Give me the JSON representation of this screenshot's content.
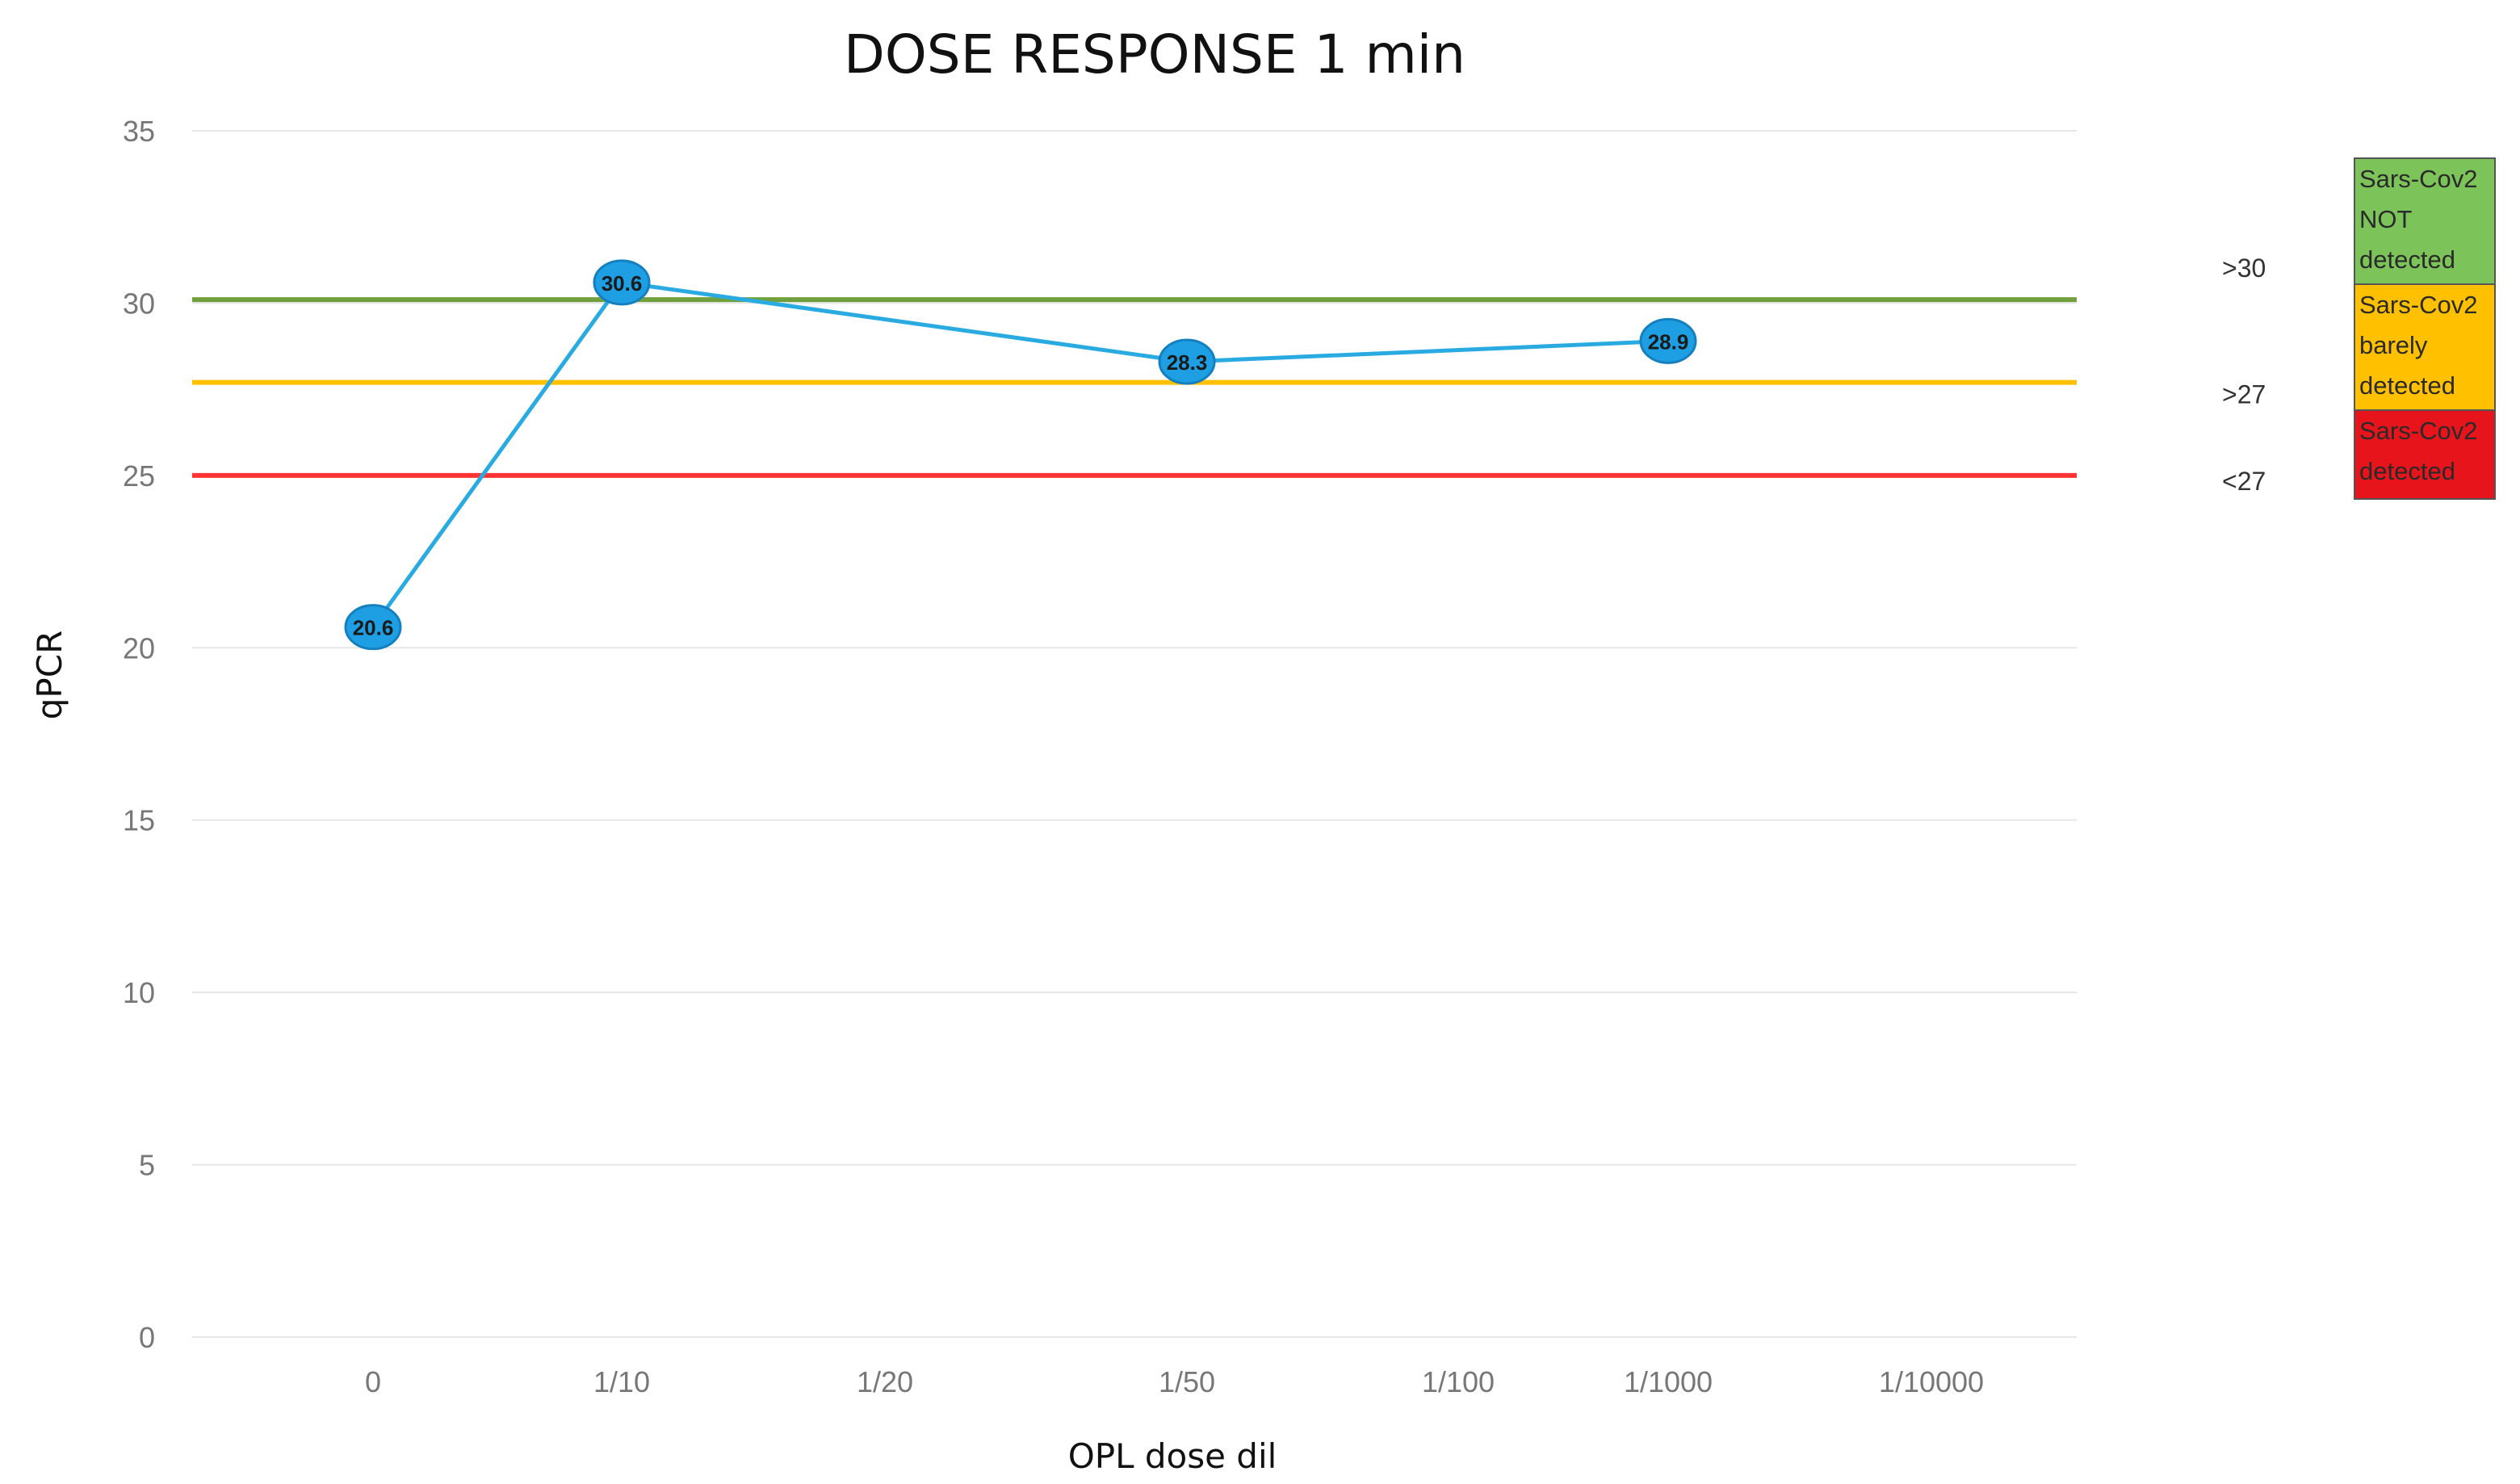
{
  "chart_data": {
    "type": "line",
    "title": "DOSE RESPONSE 1 min",
    "xlabel": "OPL dose dil",
    "ylabel": "qPCR",
    "categories": [
      "0",
      "1/10",
      "1/20",
      "1/50",
      "1/100",
      "1/1000",
      "1/10000"
    ],
    "yticks": [
      "0",
      "5",
      "10",
      "15",
      "20",
      "25",
      "30",
      "35"
    ],
    "ylim": [
      0,
      35
    ],
    "grid": true,
    "series": [
      {
        "color": "#29abe2",
        "points": [
          {
            "x": "0",
            "y": 20.6,
            "label": "20.6"
          },
          {
            "x": "1/10",
            "y": 30.6,
            "label": "30.6"
          },
          {
            "x": "1/50",
            "y": 28.3,
            "label": "28.3"
          },
          {
            "x": "1/1000",
            "y": 28.9,
            "label": "28.9"
          }
        ]
      }
    ],
    "reference_lines": [
      {
        "y": 30.1,
        "color": "#6fa03c",
        "label": ">30"
      },
      {
        "y": 27.7,
        "color": "#ffc000",
        "label": ">27"
      },
      {
        "y": 25.0,
        "color": "#ff3333",
        "label": "<27"
      }
    ],
    "legend": {
      "placement": "right",
      "items": [
        {
          "lines": [
            "Sars-Cov2",
            "NOT",
            "detected"
          ],
          "color": "#7cc35a"
        },
        {
          "lines": [
            "Sars-Cov2",
            "barely",
            "detected"
          ],
          "color": "#ffc000"
        },
        {
          "lines": [
            "Sars-Cov2",
            "detected"
          ],
          "color": "#e8141c"
        }
      ]
    }
  }
}
